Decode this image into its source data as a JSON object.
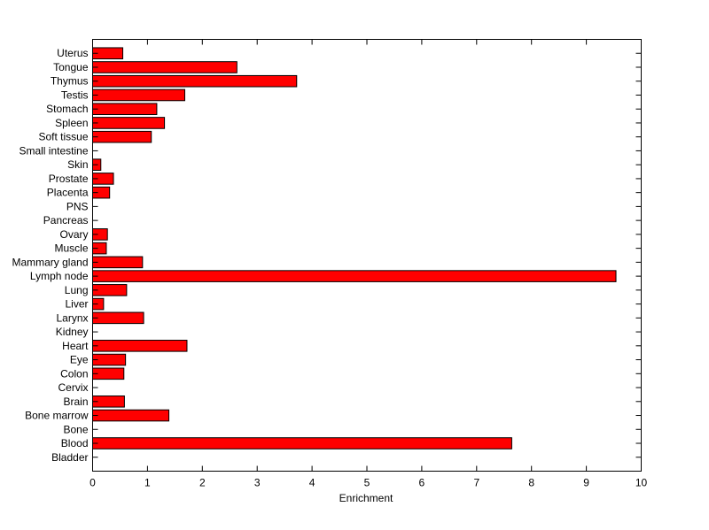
{
  "chart_data": {
    "type": "bar",
    "orientation": "horizontal",
    "categories": [
      "Bladder",
      "Blood",
      "Bone",
      "Bone marrow",
      "Brain",
      "Cervix",
      "Colon",
      "Eye",
      "Heart",
      "Kidney",
      "Larynx",
      "Liver",
      "Lung",
      "Lymph node",
      "Mammary gland",
      "Muscle",
      "Ovary",
      "Pancreas",
      "PNS",
      "Placenta",
      "Prostate",
      "Skin",
      "Small intestine",
      "Soft tissue",
      "Spleen",
      "Stomach",
      "Testis",
      "Thymus",
      "Tongue",
      "Uterus"
    ],
    "values": [
      0,
      7.64,
      0,
      1.39,
      0.58,
      0,
      0.57,
      0.6,
      1.72,
      0,
      0.93,
      0.2,
      0.62,
      9.54,
      0.91,
      0.25,
      0.27,
      0,
      0,
      0.31,
      0.38,
      0.15,
      0,
      1.07,
      1.31,
      1.17,
      1.68,
      3.72,
      2.63,
      0.55
    ],
    "xlabel": "Enrichment",
    "ylabel": "",
    "title": "",
    "xlim": [
      0,
      10
    ],
    "xticks": [
      0,
      1,
      2,
      3,
      4,
      5,
      6,
      7,
      8,
      9,
      10
    ],
    "grid": false,
    "colors": {
      "bar": "#ff0000",
      "edge": "#000000"
    }
  }
}
